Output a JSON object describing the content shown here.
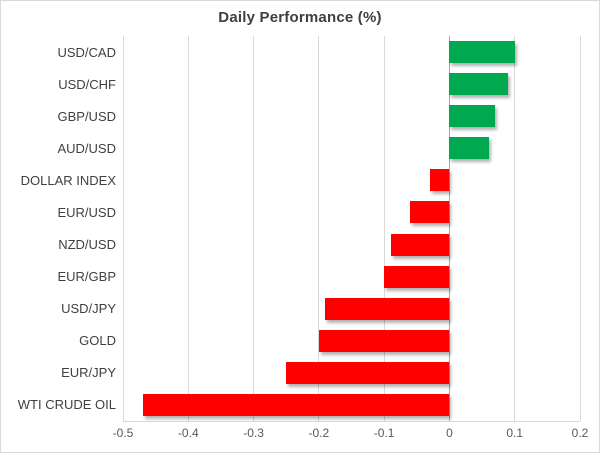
{
  "chart_data": {
    "type": "bar",
    "orientation": "horizontal",
    "title": "Daily Performance (%)",
    "categories": [
      "USD/CAD",
      "USD/CHF",
      "GBP/USD",
      "AUD/USD",
      "DOLLAR INDEX",
      "EUR/USD",
      "NZD/USD",
      "EUR/GBP",
      "USD/JPY",
      "GOLD",
      "EUR/JPY",
      "WTI CRUDE OIL"
    ],
    "values": [
      0.1,
      0.09,
      0.07,
      0.06,
      -0.03,
      -0.06,
      -0.09,
      -0.1,
      -0.19,
      -0.2,
      -0.25,
      -0.47
    ],
    "xlim": [
      -0.5,
      0.2
    ],
    "x_tick_labels": [
      "-0.5",
      "-0.4",
      "-0.3",
      "-0.2",
      "-0.1",
      "0",
      "0.1",
      "0.2"
    ],
    "x_tick_values": [
      -0.5,
      -0.4,
      -0.3,
      -0.2,
      -0.1,
      0,
      0.1,
      0.2
    ],
    "grid": "vertical-only",
    "legend": "none",
    "colors": {
      "positive_bar": "#00A950",
      "negative_bar": "#FF0000",
      "gridline": "#D9D9D9",
      "zero_line": "#A6A6A6",
      "axis_line": "#D9D9D9",
      "title_text": "#404040",
      "category_text": "#404040",
      "tick_text": "#595959",
      "chart_border": "#D9D9D9"
    }
  }
}
